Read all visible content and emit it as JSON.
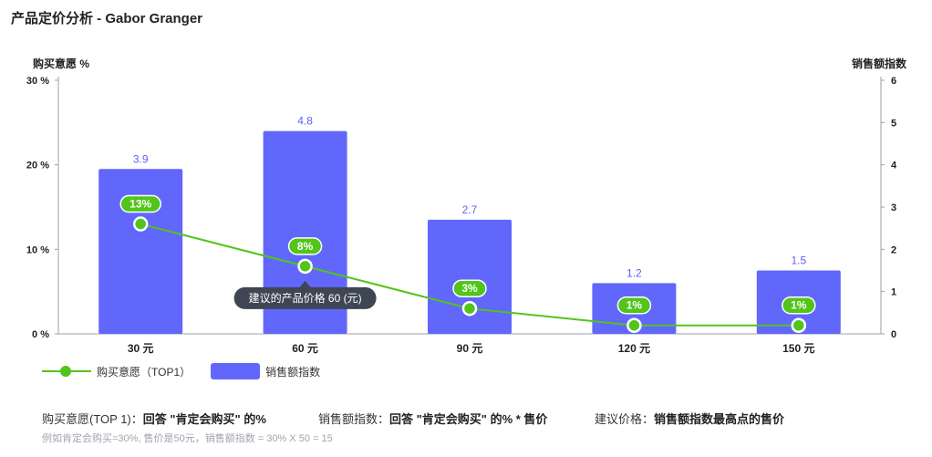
{
  "title": "产品定价分析 - Gabor Granger",
  "left_axis_title": "购买意愿 %",
  "right_axis_title": "销售额指数",
  "chart_data": {
    "type": "bar",
    "categories": [
      "30 元",
      "60 元",
      "90 元",
      "120 元",
      "150 元"
    ],
    "series": [
      {
        "name": "销售额指数",
        "type": "bar",
        "axis": "right",
        "values": [
          3.9,
          4.8,
          2.7,
          1.2,
          1.5
        ],
        "labels": [
          "3.9",
          "4.8",
          "2.7",
          "1.2",
          "1.5"
        ]
      },
      {
        "name": "购买意愿（TOP1）",
        "type": "line",
        "axis": "left",
        "values": [
          13,
          8,
          3,
          1,
          1
        ],
        "labels": [
          "13%",
          "8%",
          "3%",
          "1%",
          "1%"
        ]
      }
    ],
    "left_axis": {
      "ylim": [
        0,
        30
      ],
      "ticks": [
        "0 %",
        "10 %",
        "20 %",
        "30 %"
      ]
    },
    "right_axis": {
      "ylim": [
        0,
        6
      ],
      "ticks": [
        "0",
        "1",
        "2",
        "3",
        "4",
        "5",
        "6"
      ]
    },
    "tooltip": {
      "category_index": 1,
      "text": "建议的产品价格 60 (元)"
    },
    "legend_position": "bottom-left"
  },
  "colors": {
    "bar": "#6267fc",
    "line": "#52c41a",
    "tooltip_bg": "#3f4653",
    "axis": "#9aa0ab",
    "bar_label": "#5b62f5"
  },
  "legend": [
    {
      "icon": "line-with-dot",
      "label": "购买意愿（TOP1）"
    },
    {
      "icon": "bar-box",
      "label": "销售额指数"
    }
  ],
  "notes": [
    {
      "label": "购买意愿(TOP 1)：",
      "value": "回答 \"肯定会购买\" 的%"
    },
    {
      "label": "销售额指数：",
      "value": "回答 \"肯定会购买\" 的% * 售价"
    },
    {
      "label": "建议价格：",
      "value": "销售额指数最高点的售价"
    }
  ],
  "example": "例如肯定会购买=30%, 售价是50元，销售额指数 = 30% X 50 = 15"
}
